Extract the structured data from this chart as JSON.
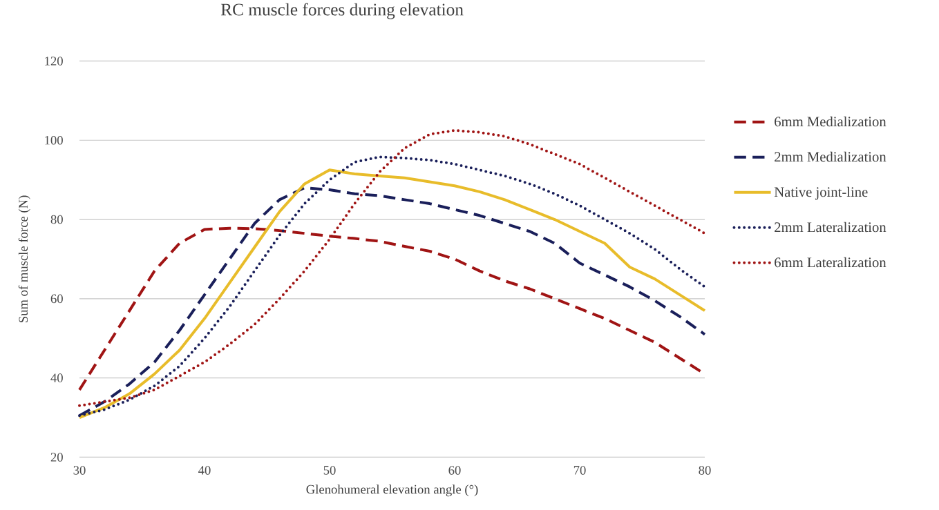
{
  "chart_data": {
    "type": "line",
    "title": "RC muscle forces during elevation",
    "xlabel": "Glenohumeral elevation angle (°)",
    "ylabel": "Sum of muscle force (N)",
    "x": [
      30,
      32,
      34,
      36,
      38,
      40,
      42,
      44,
      46,
      48,
      50,
      52,
      54,
      56,
      58,
      60,
      62,
      64,
      66,
      68,
      70,
      72,
      74,
      76,
      78,
      80
    ],
    "xlim": [
      30,
      80
    ],
    "xticks": [
      30,
      40,
      50,
      60,
      70,
      80
    ],
    "ylim": [
      20,
      120
    ],
    "yticks": [
      20,
      40,
      60,
      80,
      100,
      120
    ],
    "grid": "y",
    "legend": "right",
    "marker": "none",
    "series": [
      {
        "name": "6mm Medialization",
        "color": "#a01414",
        "line_style": "dashed",
        "values": [
          37,
          47,
          57,
          67,
          74,
          77.5,
          77.8,
          77.7,
          77.2,
          76.5,
          75.8,
          75.2,
          74.5,
          73.2,
          72,
          70,
          67,
          64.5,
          62.5,
          60,
          57.5,
          55,
          52,
          49,
          45,
          41
        ]
      },
      {
        "name": "2mm Medialization",
        "color": "#1a1f5a",
        "line_style": "dashed",
        "values": [
          30.5,
          34,
          38.5,
          44,
          52,
          61,
          70,
          79,
          85,
          88,
          87.5,
          86.5,
          86,
          85,
          84,
          82.5,
          81,
          79,
          77,
          74,
          69,
          66,
          63,
          59.5,
          55.5,
          51
        ]
      },
      {
        "name": "Native joint-line",
        "color": "#e8bc2a",
        "line_style": "solid",
        "values": [
          30,
          32.5,
          36,
          41,
          47,
          55,
          64,
          73,
          82,
          89,
          92.5,
          91.5,
          91,
          90.5,
          89.5,
          88.5,
          87,
          85,
          82.5,
          80,
          77,
          74,
          68,
          65,
          61,
          57
        ]
      },
      {
        "name": "2mm Lateralization",
        "color": "#1a1f5a",
        "line_style": "dotted",
        "values": [
          30.5,
          32,
          34.5,
          38,
          43,
          50,
          58,
          67,
          76,
          84,
          90,
          94.5,
          95.8,
          95.5,
          95,
          94,
          92.5,
          91,
          89,
          86.5,
          83.5,
          80,
          76.5,
          72.5,
          67.5,
          63
        ]
      },
      {
        "name": "6mm Lateralization",
        "color": "#a01414",
        "line_style": "dotted",
        "values": [
          33,
          34,
          35,
          37,
          40.5,
          44,
          48.5,
          53.5,
          60,
          67,
          75,
          84,
          92,
          98,
          101.5,
          102.5,
          102,
          101,
          99,
          96.5,
          94,
          90.5,
          87,
          83.5,
          80,
          76.5
        ]
      }
    ]
  }
}
